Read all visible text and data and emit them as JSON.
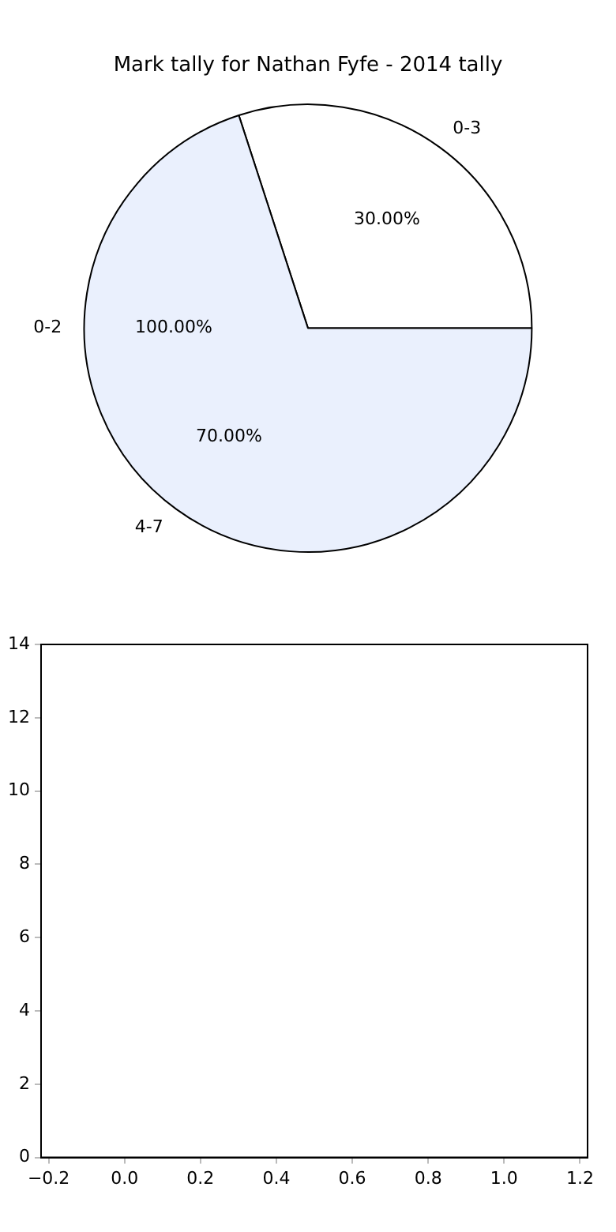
{
  "chart_data": [
    {
      "type": "pie",
      "title": "Mark tally for Nathan Fyfe - 2014 tally",
      "categories": [
        "0-3",
        "4-7"
      ],
      "values": [
        30,
        70
      ],
      "colors": [
        "#ffffff",
        "#eaf0fd"
      ],
      "value_labels": [
        "30.00%",
        "70.00%"
      ],
      "annotations": [
        "0-2",
        "100.00%"
      ],
      "legend": false
    },
    {
      "type": "scatter",
      "xlim": [
        -0.22,
        1.22
      ],
      "ylim": [
        0,
        14
      ],
      "xticks": [
        {
          "value": -0.2,
          "label": "−0.2"
        },
        {
          "value": 0,
          "label": "0.0"
        },
        {
          "value": 0.2,
          "label": "0.2"
        },
        {
          "value": 0.4,
          "label": "0.4"
        },
        {
          "value": 0.6,
          "label": "0.6"
        },
        {
          "value": 0.8,
          "label": "0.8"
        },
        {
          "value": 1,
          "label": "1.0"
        },
        {
          "value": 1.2,
          "label": "1.2"
        }
      ],
      "yticks": [
        0,
        2,
        4,
        6,
        8,
        10,
        12,
        14
      ],
      "legend": false
    }
  ]
}
